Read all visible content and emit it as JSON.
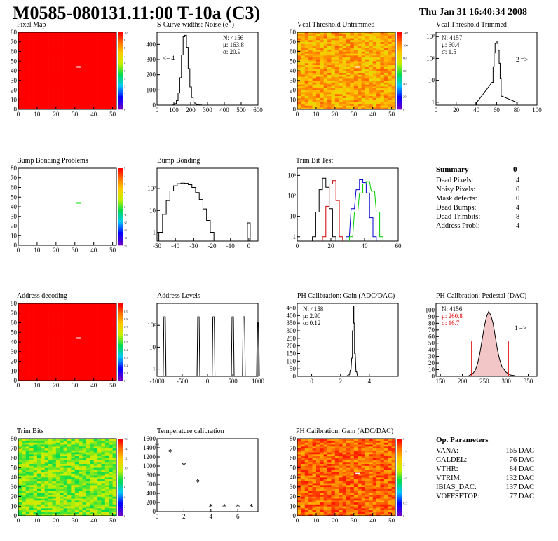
{
  "header": {
    "title": "M0585-080131.11:00 T-10a (C3)",
    "date": "Thu Jan 31 16:40:34 2008"
  },
  "colors": {
    "heat_red": "#ff0000",
    "hist_line": "#000000",
    "trim_red": "#cc0000",
    "trim_blue": "#0000cc",
    "trim_green": "#00cc00",
    "stat_red": "#dd0000"
  },
  "chart_data": [
    {
      "id": "pixel-map",
      "type": "heatmap",
      "title": "Pixel Map",
      "xlim": [
        0,
        52
      ],
      "ylim": [
        0,
        80
      ],
      "xticks": [
        "0",
        "10",
        "20",
        "30",
        "40",
        "50"
      ],
      "yticks": [
        "0",
        "10",
        "20",
        "30",
        "40",
        "50",
        "60",
        "70",
        "80"
      ],
      "colorbar": [
        "0",
        "1",
        "2",
        "3",
        "4",
        "5",
        "6",
        "7",
        "8",
        "9",
        "10"
      ],
      "fill": "uniform red (10)",
      "dead_pixel": [
        32,
        44
      ]
    },
    {
      "id": "noise",
      "type": "line",
      "title": "S-Curve widths: Noise (e⁻)",
      "stats": {
        "n": "N: 4156",
        "mu": "μ: 163.8",
        "sigma": "σ: 20.9"
      },
      "annotation": "<= 4",
      "xlim": [
        0,
        600
      ],
      "ylim": [
        0,
        480
      ],
      "xticks": [
        "0",
        "100",
        "200",
        "300",
        "400",
        "500",
        "600"
      ],
      "yticks": [
        "0",
        "100",
        "200",
        "300",
        "400"
      ],
      "x": [
        100,
        110,
        120,
        130,
        140,
        150,
        160,
        170,
        180,
        190,
        200,
        210,
        220,
        230,
        240,
        250,
        260
      ],
      "values": [
        2,
        10,
        30,
        80,
        180,
        330,
        450,
        460,
        380,
        240,
        120,
        50,
        20,
        8,
        4,
        2,
        1
      ]
    },
    {
      "id": "vcal-untrimmed",
      "type": "heatmap",
      "title": "Vcal Threshold Untrimmed",
      "xlim": [
        0,
        52
      ],
      "ylim": [
        0,
        80
      ],
      "xticks": [
        "0",
        "10",
        "20",
        "30",
        "40",
        "50"
      ],
      "yticks": [
        "0",
        "10",
        "20",
        "30",
        "40",
        "50",
        "60",
        "70",
        "80"
      ],
      "colorbar": [
        "0",
        "20",
        "40",
        "60",
        "80",
        "100",
        "120"
      ],
      "fill": "noisy orange/yellow"
    },
    {
      "id": "vcal-trimmed",
      "type": "line",
      "title": "Vcal Threshold Trimmed",
      "stats": {
        "n": "N: 4157",
        "mu": "μ: 60.4",
        "sigma": "σ:  1.5"
      },
      "annotation": "2 =>",
      "log_y": true,
      "xlim": [
        0,
        100
      ],
      "xticks": [
        "0",
        "20",
        "40",
        "60",
        "80",
        "100"
      ],
      "yticks": [
        "1",
        "10",
        "10²",
        "10³"
      ],
      "x": [
        40,
        56,
        57,
        58,
        59,
        60,
        61,
        62,
        63,
        64,
        65,
        80
      ],
      "values": [
        1,
        10,
        60,
        300,
        900,
        1200,
        900,
        400,
        90,
        15,
        2,
        1
      ]
    },
    {
      "id": "bump-problems",
      "type": "heatmap",
      "title": "Bump Bonding Problems",
      "xlim": [
        0,
        52
      ],
      "ylim": [
        0,
        80
      ],
      "xticks": [
        "0",
        "10",
        "20",
        "30",
        "40",
        "50"
      ],
      "yticks": [
        "0",
        "10",
        "20",
        "30",
        "40",
        "50",
        "60",
        "70",
        "80"
      ],
      "colorbar": [
        "-5",
        "-4",
        "-3",
        "-2",
        "-1",
        "0",
        "1",
        "2",
        "3",
        "4",
        "5"
      ],
      "fill": "white",
      "marker": [
        32,
        44
      ]
    },
    {
      "id": "bump-bonding",
      "type": "line",
      "title": "Bump Bonding",
      "log_y": true,
      "xlim": [
        -50,
        5
      ],
      "xticks": [
        "-50",
        "-40",
        "-30",
        "-20",
        "-10",
        "0"
      ],
      "yticks": [
        "1",
        "10",
        "10²"
      ],
      "x": [
        -48,
        -46,
        -44,
        -42,
        -40,
        -38,
        -36,
        -34,
        -32,
        -30,
        -28,
        -26,
        -24,
        -22,
        -20,
        0
      ],
      "values": [
        1,
        8,
        40,
        120,
        220,
        280,
        300,
        290,
        250,
        180,
        100,
        45,
        15,
        4,
        1,
        3
      ]
    },
    {
      "id": "trim-bit-test",
      "type": "line",
      "title": "Trim Bit Test",
      "log_y": true,
      "xlim": [
        0,
        60
      ],
      "xticks": [
        "0",
        "20",
        "40",
        "60"
      ],
      "yticks": [
        "1",
        "10",
        "10²",
        "10³"
      ],
      "series": [
        {
          "color": "#000000",
          "x": [
            10,
            12,
            14,
            16,
            18,
            20,
            22
          ],
          "values": [
            1,
            20,
            300,
            1200,
            400,
            30,
            1
          ]
        },
        {
          "color": "#cc0000",
          "x": [
            16,
            18,
            20,
            22,
            24,
            26
          ],
          "values": [
            1,
            40,
            600,
            900,
            80,
            1
          ]
        },
        {
          "color": "#0000cc",
          "x": [
            30,
            33,
            36,
            38,
            40,
            42,
            44,
            46
          ],
          "values": [
            1,
            30,
            300,
            1000,
            700,
            200,
            10,
            1
          ]
        },
        {
          "color": "#00cc00",
          "x": [
            32,
            35,
            38,
            40,
            42,
            45,
            48,
            50
          ],
          "values": [
            1,
            20,
            200,
            600,
            800,
            250,
            20,
            1
          ]
        }
      ]
    },
    {
      "id": "address-decoding",
      "type": "heatmap",
      "title": "Address decoding",
      "xlim": [
        0,
        52
      ],
      "ylim": [
        0,
        80
      ],
      "xticks": [
        "0",
        "10",
        "20",
        "30",
        "40",
        "50"
      ],
      "yticks": [
        "0",
        "10",
        "20",
        "30",
        "40",
        "50",
        "60",
        "70",
        "80"
      ],
      "colorbar": [
        "0",
        "0.1",
        "0.2",
        "0.3",
        "0.4",
        "0.5",
        "0.6",
        "0.7",
        "0.8",
        "0.9",
        "1"
      ],
      "fill": "uniform red (1)",
      "dead_pixel": [
        32,
        44
      ]
    },
    {
      "id": "address-levels",
      "type": "line",
      "title": "Address Levels",
      "log_y": true,
      "xlim": [
        -1000,
        1000
      ],
      "xticks": [
        "-1000",
        "-500",
        "0",
        "500",
        "1000"
      ],
      "yticks": [
        "1",
        "10",
        "10²"
      ],
      "peaks": [
        -850,
        -180,
        120,
        500,
        720,
        1000
      ],
      "peak_values": [
        400,
        400,
        400,
        400,
        400,
        200
      ]
    },
    {
      "id": "ph-gain",
      "type": "line",
      "title": "PH Calibration: Gain (ADC/DAC)",
      "stats": {
        "n": "N: 4158",
        "mu": "μ: 2.90",
        "sigma": "σ: 0.12"
      },
      "xlim": [
        -1,
        6
      ],
      "ylim": [
        0,
        480
      ],
      "xticks": [
        "0",
        "2",
        "4"
      ],
      "yticks": [
        "0",
        "50",
        "100",
        "150",
        "200",
        "250",
        "300",
        "350",
        "400",
        "450"
      ],
      "x": [
        2.4,
        2.6,
        2.7,
        2.8,
        2.85,
        2.9,
        2.95,
        3.0,
        3.1,
        3.2
      ],
      "values": [
        2,
        10,
        40,
        120,
        300,
        460,
        350,
        150,
        30,
        2
      ]
    },
    {
      "id": "ph-pedestal",
      "type": "area",
      "title": "PH Calibration: Pedestal (DAC)",
      "stats": {
        "n": "N: 4156",
        "mu": "μ: 260.8",
        "sigma": "σ: 16.7"
      },
      "annotation": "1 =>",
      "xlim": [
        140,
        370
      ],
      "ylim": [
        0,
        110
      ],
      "xticks": [
        "150",
        "200",
        "250",
        "300",
        "350"
      ],
      "yticks": [
        "0",
        "10",
        "20",
        "30",
        "40",
        "50",
        "60",
        "70",
        "80",
        "90",
        "100"
      ],
      "x": [
        215,
        225,
        230,
        235,
        240,
        245,
        250,
        255,
        260,
        265,
        270,
        275,
        280,
        285,
        290,
        300,
        310,
        320
      ],
      "values": [
        1,
        5,
        10,
        20,
        35,
        55,
        75,
        90,
        98,
        92,
        80,
        60,
        40,
        25,
        15,
        6,
        2,
        1
      ],
      "cut_lines": [
        221,
        305
      ]
    },
    {
      "id": "trim-bits",
      "type": "heatmap",
      "title": "Trim Bits",
      "xlim": [
        0,
        52
      ],
      "ylim": [
        0,
        80
      ],
      "xticks": [
        "0",
        "10",
        "20",
        "30",
        "40",
        "50"
      ],
      "yticks": [
        "0",
        "10",
        "20",
        "30",
        "40",
        "50",
        "60",
        "70",
        "80"
      ],
      "colorbar": [
        "0",
        "2",
        "4",
        "6",
        "8",
        "10",
        "12",
        "14",
        "16"
      ],
      "fill": "noisy green/yellow"
    },
    {
      "id": "temperature",
      "type": "scatter",
      "title": "Temperature calibration",
      "xlim": [
        0,
        7.5
      ],
      "ylim": [
        0,
        1600
      ],
      "xticks": [
        "0",
        "2",
        "4",
        "6"
      ],
      "yticks": [
        "0",
        "200",
        "400",
        "600",
        "800",
        "1000",
        "1200",
        "1400",
        "1600"
      ],
      "x": [
        0,
        1,
        2,
        3,
        4,
        5,
        6,
        7
      ],
      "values": [
        1450,
        1300,
        1010,
        640,
        100,
        100,
        100,
        100
      ]
    },
    {
      "id": "ph-gain-map",
      "type": "heatmap",
      "title": "PH Calibration: Gain (ADC/DAC)",
      "xlim": [
        0,
        52
      ],
      "ylim": [
        0,
        80
      ],
      "xticks": [
        "0",
        "10",
        "20",
        "30",
        "40",
        "50"
      ],
      "yticks": [
        "0",
        "10",
        "20",
        "30",
        "40",
        "50",
        "60",
        "70",
        "80"
      ],
      "colorbar": [
        "0",
        "0.5",
        "1",
        "1.5",
        "2",
        "2.5",
        "3"
      ],
      "fill": "noisy red/orange"
    }
  ],
  "summary": {
    "title": "Summary",
    "total": "0",
    "rows": [
      {
        "label": "Dead Pixels:",
        "value": "4"
      },
      {
        "label": "Noisy Pixels:",
        "value": "0"
      },
      {
        "label": "Mask defects:",
        "value": "0"
      },
      {
        "label": "Dead Bumps:",
        "value": "4"
      },
      {
        "label": "Dead Trimbits:",
        "value": "8"
      },
      {
        "label": "Address Probl:",
        "value": "4"
      }
    ]
  },
  "op_params": {
    "title": "Op. Parameters",
    "rows": [
      {
        "label": "VANA:",
        "value": "165 DAC"
      },
      {
        "label": "CALDEL:",
        "value": "76 DAC"
      },
      {
        "label": "VTHR:",
        "value": "84 DAC"
      },
      {
        "label": "VTRIM:",
        "value": "132 DAC"
      },
      {
        "label": "IBIAS_DAC:",
        "value": "137 DAC"
      },
      {
        "label": "VOFFSETOP:",
        "value": "77 DAC"
      }
    ]
  }
}
